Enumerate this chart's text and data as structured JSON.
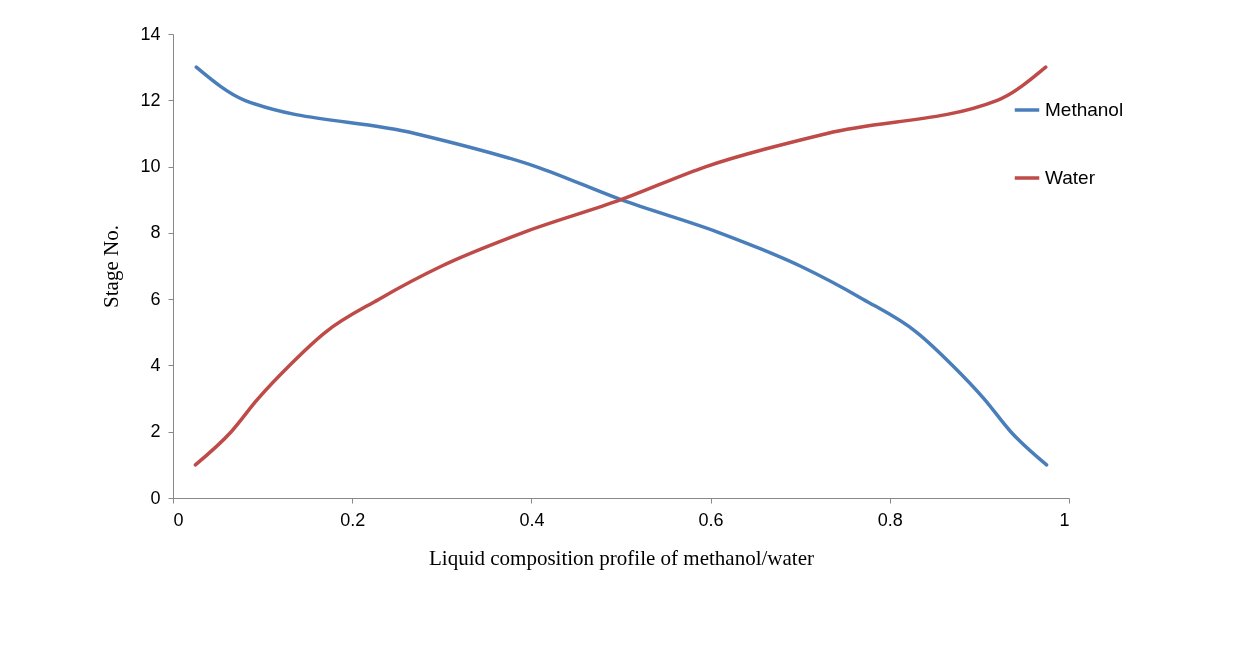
{
  "chart_data": {
    "type": "line",
    "xlabel": "Liquid composition profile of methanol/water",
    "ylabel": "Stage No.",
    "xlim": [
      0,
      1
    ],
    "xticks": [
      0,
      0.2,
      0.4,
      0.6,
      0.8,
      1
    ],
    "ylim": [
      0,
      14
    ],
    "yticks": [
      0,
      2,
      4,
      6,
      8,
      10,
      12,
      14
    ],
    "legend": "right",
    "marker": "none",
    "line_style": "solid",
    "series": [
      {
        "name": "Methanol",
        "color": "#4a7ebb",
        "x": [
          0.975,
          0.935,
          0.905,
          0.87,
          0.83,
          0.77,
          0.7,
          0.61,
          0.5,
          0.405,
          0.27,
          0.08,
          0.026
        ],
        "values": [
          1,
          2,
          3,
          4,
          5,
          6,
          7,
          8,
          9,
          10,
          11,
          12,
          13
        ]
      },
      {
        "name": "Water",
        "color": "#be4b48",
        "x": [
          0.025,
          0.065,
          0.095,
          0.13,
          0.17,
          0.23,
          0.3,
          0.39,
          0.5,
          0.595,
          0.73,
          0.92,
          0.974
        ],
        "values": [
          1,
          2,
          3,
          4,
          5,
          6,
          7,
          8,
          9,
          10,
          11,
          12,
          13
        ]
      }
    ]
  }
}
